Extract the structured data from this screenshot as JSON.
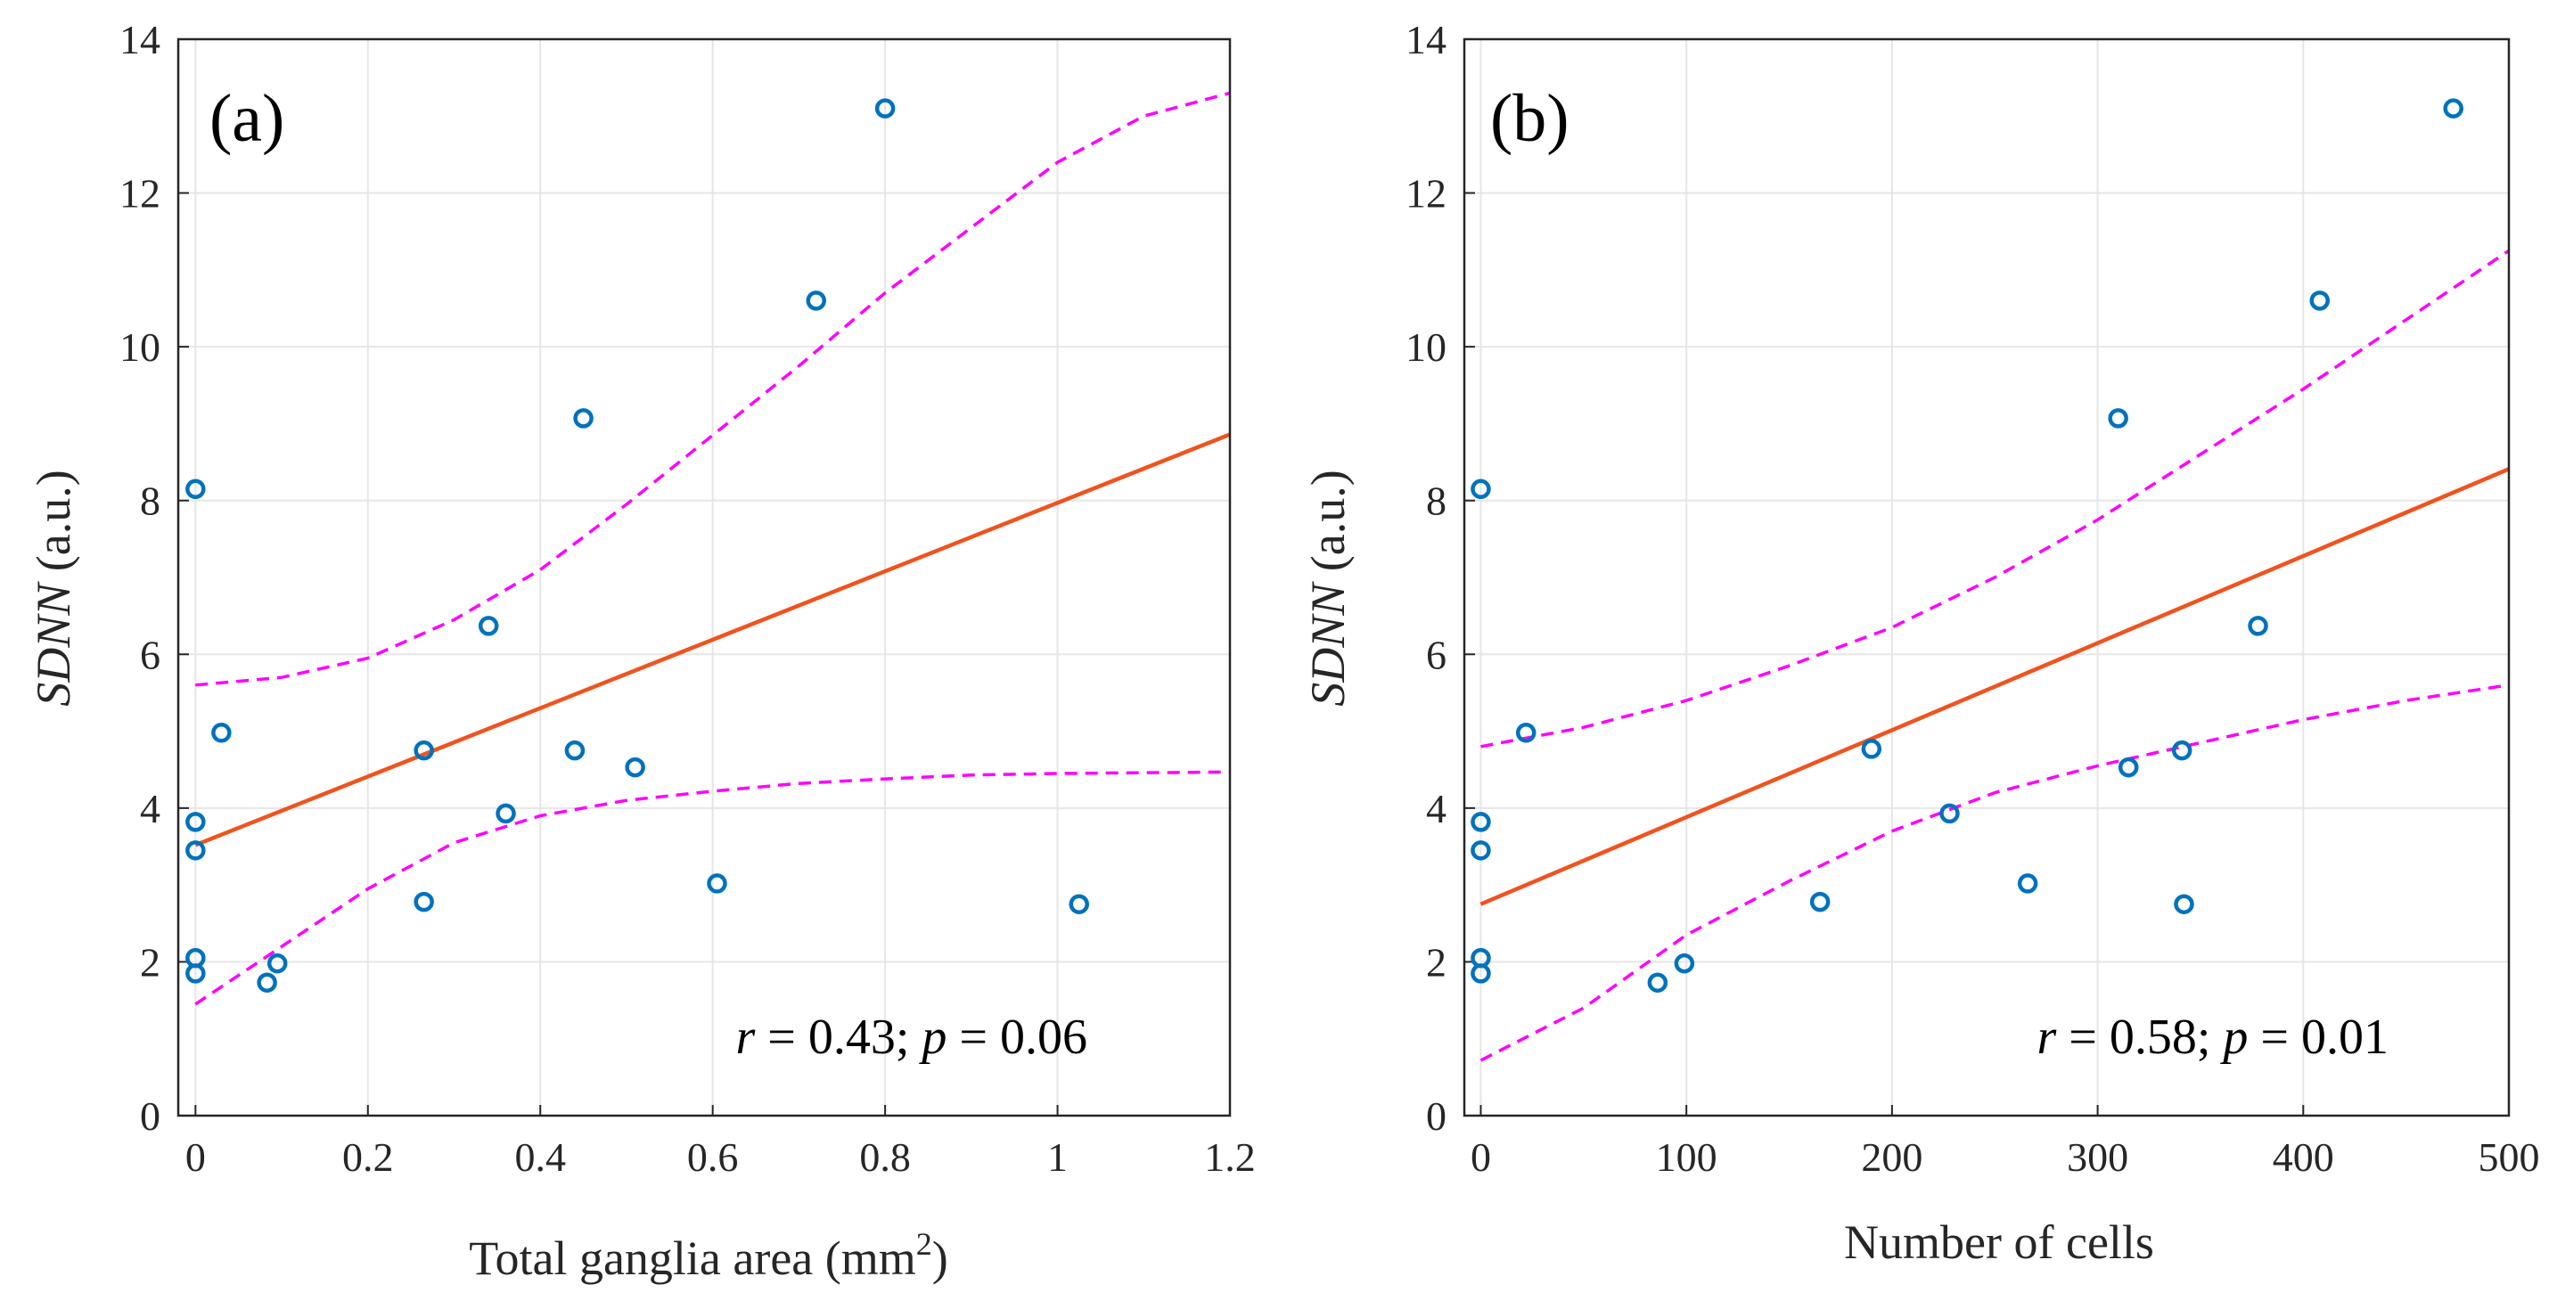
{
  "colors": {
    "points": "#0072BD",
    "fit": "#F0531E",
    "ci": "#FF00FF",
    "grid": "#E6E6E6",
    "axis": "#262626"
  },
  "chart_data": [
    {
      "type": "scatter",
      "panel_label": "(a)",
      "xlabel_main": "Total ganglia area (mm",
      "xlabel_sup": "2",
      "xlabel_end": ")",
      "ylabel_italic": "SDNN",
      "ylabel_rest": " (a.u.)",
      "xlim": [
        -0.02,
        1.2
      ],
      "ylim": [
        0,
        14
      ],
      "x_ticks": [
        0,
        0.2,
        0.4,
        0.6,
        0.8,
        1,
        1.2
      ],
      "x_tick_labels": [
        "0",
        "0.2",
        "0.4",
        "0.6",
        "0.8",
        "1",
        "1.2"
      ],
      "y_ticks": [
        0,
        2,
        4,
        6,
        8,
        10,
        12,
        14
      ],
      "y_tick_labels": [
        "0",
        "2",
        "4",
        "6",
        "8",
        "10",
        "12",
        "14"
      ],
      "grid": true,
      "points": [
        [
          0,
          8.15
        ],
        [
          0,
          3.82
        ],
        [
          0,
          3.45
        ],
        [
          0,
          2.05
        ],
        [
          0,
          1.85
        ],
        [
          0.03,
          4.98
        ],
        [
          0.083,
          1.73
        ],
        [
          0.095,
          1.98
        ],
        [
          0.265,
          4.75
        ],
        [
          0.265,
          2.78
        ],
        [
          0.34,
          6.37
        ],
        [
          0.36,
          3.93
        ],
        [
          0.44,
          4.75
        ],
        [
          0.45,
          9.07
        ],
        [
          0.51,
          4.53
        ],
        [
          0.605,
          3.02
        ],
        [
          0.72,
          10.6
        ],
        [
          0.8,
          13.1
        ],
        [
          1.025,
          2.75
        ]
      ],
      "fit": {
        "intercept": 3.52,
        "slope": 4.45
      },
      "ci_upper": [
        [
          0,
          5.6
        ],
        [
          0.1,
          5.7
        ],
        [
          0.2,
          5.95
        ],
        [
          0.3,
          6.45
        ],
        [
          0.4,
          7.1
        ],
        [
          0.5,
          7.95
        ],
        [
          0.6,
          8.85
        ],
        [
          0.7,
          9.75
        ],
        [
          0.8,
          10.7
        ],
        [
          0.9,
          11.55
        ],
        [
          1.0,
          12.4
        ],
        [
          1.1,
          13.0
        ],
        [
          1.2,
          13.3
        ]
      ],
      "ci_lower": [
        [
          0,
          1.45
        ],
        [
          0.1,
          2.2
        ],
        [
          0.2,
          2.95
        ],
        [
          0.3,
          3.55
        ],
        [
          0.4,
          3.9
        ],
        [
          0.5,
          4.1
        ],
        [
          0.6,
          4.22
        ],
        [
          0.7,
          4.32
        ],
        [
          0.8,
          4.38
        ],
        [
          0.9,
          4.43
        ],
        [
          1.0,
          4.45
        ],
        [
          1.1,
          4.46
        ],
        [
          1.2,
          4.47
        ]
      ],
      "stat": {
        "r_label": "r",
        "r_text": " = 0.43; ",
        "p_label": "p",
        "p_text": " = 0.06"
      }
    },
    {
      "type": "scatter",
      "panel_label": "(b)",
      "xlabel": "Number of cells",
      "ylabel_italic": "SDNN",
      "ylabel_rest": " (a.u.)",
      "xlim": [
        -8,
        500
      ],
      "ylim": [
        0,
        14
      ],
      "x_ticks": [
        0,
        100,
        200,
        300,
        400,
        500
      ],
      "x_tick_labels": [
        "0",
        "100",
        "200",
        "300",
        "400",
        "500"
      ],
      "y_ticks": [
        0,
        2,
        4,
        6,
        8,
        10,
        12,
        14
      ],
      "y_tick_labels": [
        "0",
        "2",
        "4",
        "6",
        "8",
        "10",
        "12",
        "14"
      ],
      "grid": true,
      "points": [
        [
          0,
          8.15
        ],
        [
          0,
          3.82
        ],
        [
          0,
          3.45
        ],
        [
          0,
          2.05
        ],
        [
          0,
          1.85
        ],
        [
          22,
          4.98
        ],
        [
          86,
          1.73
        ],
        [
          99,
          1.98
        ],
        [
          165,
          2.78
        ],
        [
          190,
          4.77
        ],
        [
          228,
          3.93
        ],
        [
          266,
          3.02
        ],
        [
          310,
          9.07
        ],
        [
          315,
          4.53
        ],
        [
          341,
          4.75
        ],
        [
          342,
          2.75
        ],
        [
          378,
          6.37
        ],
        [
          408,
          10.6
        ],
        [
          473,
          13.1
        ]
      ],
      "fit": {
        "intercept": 2.75,
        "slope": 0.01132
      },
      "ci_upper": [
        [
          0,
          4.8
        ],
        [
          50,
          5.05
        ],
        [
          100,
          5.4
        ],
        [
          150,
          5.85
        ],
        [
          200,
          6.35
        ],
        [
          250,
          7.0
        ],
        [
          300,
          7.75
        ],
        [
          350,
          8.6
        ],
        [
          400,
          9.45
        ],
        [
          450,
          10.35
        ],
        [
          500,
          11.25
        ]
      ],
      "ci_lower": [
        [
          0,
          0.72
        ],
        [
          50,
          1.4
        ],
        [
          100,
          2.35
        ],
        [
          150,
          3.05
        ],
        [
          200,
          3.7
        ],
        [
          250,
          4.2
        ],
        [
          300,
          4.55
        ],
        [
          350,
          4.85
        ],
        [
          400,
          5.15
        ],
        [
          450,
          5.4
        ],
        [
          500,
          5.6
        ]
      ],
      "stat": {
        "r_label": "r",
        "r_text": " = 0.58; ",
        "p_label": "p",
        "p_text": " = 0.01"
      }
    }
  ]
}
